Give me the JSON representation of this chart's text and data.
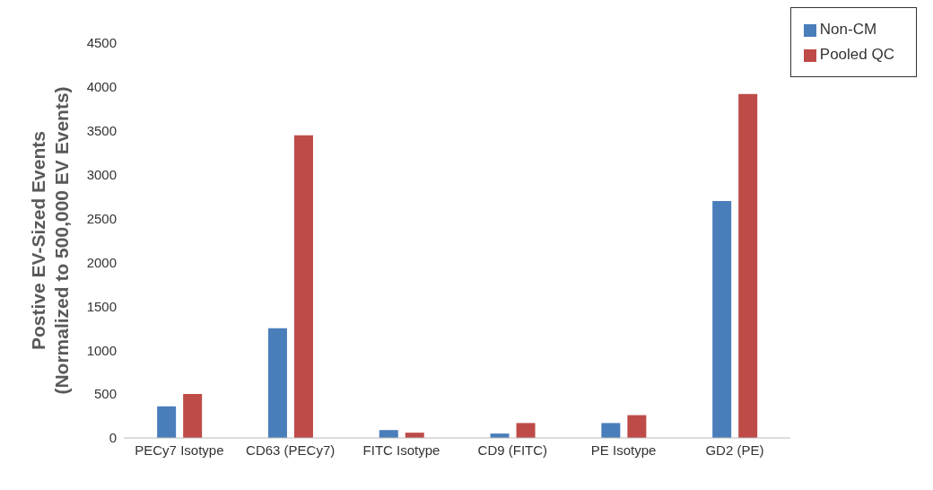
{
  "chart_data": {
    "type": "bar",
    "ylabel": "Postive EV-Sized Events (Normalized to 500,000 EV Events)",
    "categories": [
      "PECy7 Isotype",
      "CD63 (PECy7)",
      "FITC Isotype",
      "CD9  (FITC)",
      "PE Isotype",
      "GD2 (PE)"
    ],
    "series": [
      {
        "name": "Non-CM",
        "color": "#4a7ebb",
        "values": [
          360,
          1250,
          90,
          50,
          170,
          2700
        ]
      },
      {
        "name": "Pooled QC",
        "color": "#be4b48",
        "values": [
          500,
          3450,
          60,
          170,
          260,
          3920
        ]
      }
    ],
    "ylim": [
      0,
      4500
    ],
    "yticks": [
      0,
      500,
      1000,
      1500,
      2000,
      2500,
      3000,
      3500,
      4000,
      4500
    ],
    "grid": false,
    "legend": "top right"
  }
}
